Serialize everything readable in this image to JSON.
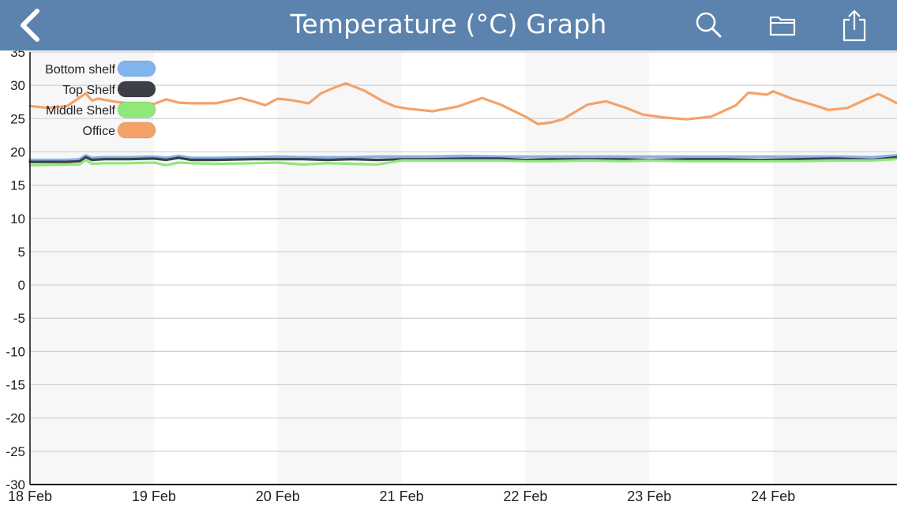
{
  "header": {
    "title": "Temperature (°C) Graph",
    "back_icon": "chevron-left-icon",
    "search_icon": "search-icon",
    "folder_icon": "folder-icon",
    "share_icon": "share-icon",
    "background_color": "#5b83ae"
  },
  "chart_data": {
    "type": "line",
    "title": "",
    "xlabel": "",
    "ylabel": "",
    "ylim": [
      -30,
      35
    ],
    "yticks": [
      -30,
      -25,
      -20,
      -15,
      -10,
      -5,
      0,
      5,
      10,
      15,
      20,
      25,
      30,
      35
    ],
    "xlim": [
      0,
      7
    ],
    "xticks": [
      {
        "value": 0,
        "label": "18 Feb"
      },
      {
        "value": 1,
        "label": "19 Feb"
      },
      {
        "value": 2,
        "label": "20 Feb"
      },
      {
        "value": 3,
        "label": "21 Feb"
      },
      {
        "value": 4,
        "label": "22 Feb"
      },
      {
        "value": 5,
        "label": "23 Feb"
      },
      {
        "value": 6,
        "label": "24 Feb"
      }
    ],
    "grid": true,
    "alternate_day_shading": true,
    "legend_position": "top-left",
    "series": [
      {
        "name": "Bottom shelf",
        "color": "#80b4ec",
        "x": [
          0,
          0.3,
          0.4,
          0.45,
          0.5,
          0.6,
          0.8,
          1.0,
          1.1,
          1.2,
          1.3,
          1.5,
          1.8,
          2.0,
          2.2,
          2.4,
          2.6,
          2.8,
          3.0,
          3.2,
          3.5,
          3.8,
          4.0,
          4.2,
          4.5,
          4.8,
          5.0,
          5.3,
          5.6,
          5.9,
          6.2,
          6.5,
          6.8,
          7.0
        ],
        "y": [
          18.8,
          18.8,
          18.9,
          19.5,
          19.1,
          19.2,
          19.2,
          19.3,
          19.1,
          19.4,
          19.1,
          19.1,
          19.2,
          19.3,
          19.2,
          19.2,
          19.2,
          19.3,
          19.3,
          19.3,
          19.4,
          19.3,
          19.3,
          19.3,
          19.3,
          19.3,
          19.3,
          19.3,
          19.3,
          19.3,
          19.3,
          19.3,
          19.2,
          19.5
        ]
      },
      {
        "name": "Top Shelf",
        "color": "#3d3f46",
        "x": [
          0,
          0.3,
          0.4,
          0.45,
          0.5,
          0.6,
          0.8,
          1.0,
          1.1,
          1.2,
          1.3,
          1.5,
          1.8,
          2.0,
          2.2,
          2.4,
          2.6,
          2.8,
          3.0,
          3.2,
          3.5,
          3.8,
          4.0,
          4.2,
          4.5,
          4.8,
          5.0,
          5.3,
          5.6,
          5.9,
          6.2,
          6.5,
          6.8,
          7.0
        ],
        "y": [
          18.5,
          18.5,
          18.6,
          19.2,
          18.8,
          18.9,
          18.9,
          19.0,
          18.8,
          19.1,
          18.8,
          18.8,
          18.9,
          18.9,
          18.9,
          18.8,
          18.9,
          18.8,
          18.9,
          18.9,
          19.0,
          19.0,
          18.8,
          18.9,
          18.9,
          18.9,
          18.8,
          18.9,
          18.9,
          18.8,
          18.9,
          19.0,
          18.8,
          19.2
        ]
      },
      {
        "name": "Middle Shelf",
        "color": "#90e87a",
        "x": [
          0,
          0.3,
          0.4,
          0.45,
          0.5,
          0.6,
          0.8,
          1.0,
          1.1,
          1.2,
          1.3,
          1.5,
          1.8,
          2.0,
          2.2,
          2.4,
          2.6,
          2.8,
          3.0,
          3.2,
          3.5,
          3.8,
          4.0,
          4.2,
          4.5,
          4.8,
          5.0,
          5.3,
          5.6,
          5.9,
          6.2,
          6.5,
          6.8,
          7.0
        ],
        "y": [
          18.0,
          18.1,
          18.1,
          18.8,
          18.2,
          18.3,
          18.3,
          18.4,
          18.0,
          18.4,
          18.3,
          18.2,
          18.3,
          18.4,
          18.1,
          18.3,
          18.2,
          18.1,
          18.7,
          18.7,
          18.7,
          18.7,
          18.6,
          18.6,
          18.7,
          18.6,
          18.7,
          18.6,
          18.6,
          18.6,
          18.6,
          18.7,
          18.7,
          18.9
        ]
      },
      {
        "name": "Office",
        "color": "#f4a268",
        "x": [
          0,
          0.15,
          0.3,
          0.45,
          0.5,
          0.55,
          0.7,
          0.85,
          1.0,
          1.1,
          1.2,
          1.3,
          1.5,
          1.7,
          1.8,
          1.9,
          2.0,
          2.1,
          2.25,
          2.35,
          2.45,
          2.55,
          2.7,
          2.85,
          2.95,
          3.05,
          3.25,
          3.45,
          3.65,
          3.8,
          4.0,
          4.1,
          4.2,
          4.3,
          4.5,
          4.65,
          4.8,
          4.95,
          5.1,
          5.3,
          5.5,
          5.7,
          5.8,
          5.95,
          6.0,
          6.15,
          6.3,
          6.45,
          6.6,
          6.75,
          6.85,
          6.95,
          7.0
        ],
        "y": [
          26.9,
          26.6,
          26.9,
          28.8,
          27.7,
          28.0,
          27.5,
          27.2,
          27.2,
          27.9,
          27.4,
          27.3,
          27.3,
          28.1,
          27.6,
          27.0,
          28.0,
          27.8,
          27.3,
          28.8,
          29.6,
          30.3,
          29.2,
          27.6,
          26.8,
          26.5,
          26.1,
          26.8,
          28.1,
          27.1,
          25.3,
          24.2,
          24.4,
          24.9,
          27.1,
          27.6,
          26.7,
          25.6,
          25.2,
          24.9,
          25.3,
          27.0,
          28.9,
          28.6,
          29.1,
          28.0,
          27.2,
          26.3,
          26.6,
          27.9,
          28.7,
          27.8,
          27.3
        ]
      }
    ]
  }
}
